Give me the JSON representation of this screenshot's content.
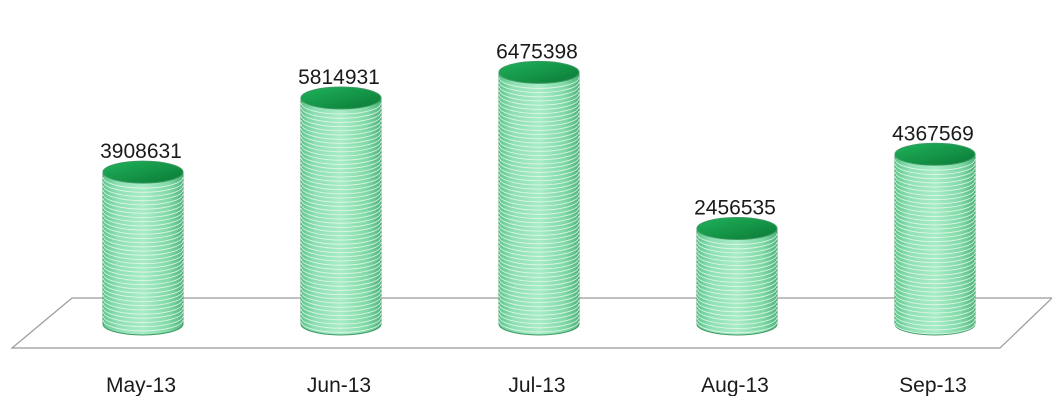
{
  "chart_data": {
    "type": "bar",
    "style": "3d-cylinder",
    "categories": [
      "May-13",
      "Jun-13",
      "Jul-13",
      "Aug-13",
      "Sep-13"
    ],
    "values": [
      3908631,
      5814931,
      6475398,
      2456535,
      4367569
    ],
    "data_labels": [
      "3908631",
      "5814931",
      "6475398",
      "2456535",
      "4367569"
    ],
    "ylim": [
      0,
      7000000
    ],
    "grid": false,
    "legend": "none",
    "colors": {
      "bar_body": "#7fd9a6",
      "bar_ring_line": "#e9f8ef",
      "bar_edge": "#3d9a63",
      "bar_top": "#14a04d",
      "bar_top_dark": "#0b7a36",
      "floor_line": "#9a9a9a"
    }
  }
}
